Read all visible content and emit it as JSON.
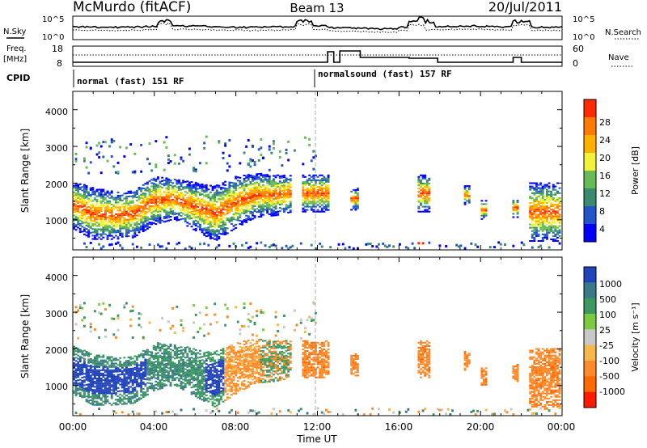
{
  "header": {
    "station": "McMurdo (fitACF)",
    "beam": "Beam 13",
    "date": "20/Jul/2011"
  },
  "noise_panel": {
    "left_label": "N.Sky",
    "right_label": "N.Search",
    "left_ticks": [
      "10^5",
      "10^0"
    ],
    "right_ticks": [
      "10^5",
      "10^0"
    ]
  },
  "freq_panel": {
    "left_label_1": "Freq.",
    "left_label_2": "[MHz]",
    "right_label": "Nave",
    "left_ticks": [
      "18",
      "8"
    ],
    "right_ticks": [
      "60",
      "0"
    ]
  },
  "cpid_panel": {
    "label": "CPID",
    "modes": [
      {
        "name": "normal (fast) 151 RF",
        "start_hour": 0,
        "end_hour": 12
      },
      {
        "name": "normalsound (fast) 157 RF",
        "start_hour": 12,
        "end_hour": 24
      }
    ]
  },
  "x_axis": {
    "label": "Time UT",
    "ticks": [
      "00:00",
      "04:00",
      "08:00",
      "12:00",
      "16:00",
      "20:00",
      "00:00"
    ],
    "range_hours": [
      0,
      24
    ]
  },
  "power_panel": {
    "ylabel": "Slant Range [km]",
    "yticks": [
      "4000",
      "3000",
      "2000",
      "1000"
    ],
    "colorbar_label": "Power [dB]",
    "colorbar_ticks": [
      "28",
      "24",
      "20",
      "16",
      "12",
      "8",
      "4"
    ],
    "colors": [
      "#0000ff",
      "#2255cc",
      "#3a8a70",
      "#66bb55",
      "#f2f23a",
      "#ffb000",
      "#ff7a00",
      "#ff2a00"
    ]
  },
  "velocity_panel": {
    "ylabel": "Slant Range [km]",
    "yticks": [
      "4000",
      "3000",
      "2000",
      "1000"
    ],
    "colorbar_label": "Velocity [m s⁻¹]",
    "colorbar_ticks": [
      "1000",
      "500",
      "100",
      "25",
      "-25",
      "-100",
      "-500",
      "-1000"
    ],
    "colors": [
      "#2244bb",
      "#3a7a88",
      "#3d9960",
      "#7acb40",
      "#c8c8c8",
      "#f7b74a",
      "#ff8a2a",
      "#ff6a00",
      "#ff1a00"
    ]
  },
  "chart_data": {
    "type": "heatmap",
    "x_label": "Time UT",
    "y_label": "Slant Range [km]",
    "x_range_hours": [
      0,
      24
    ],
    "y_range_km": [
      180,
      4500
    ],
    "panels": [
      "Power [dB]",
      "Velocity [m s⁻¹]"
    ],
    "main_echo_band": [
      {
        "hour": 0.0,
        "center_km": 1400,
        "width_km": 650
      },
      {
        "hour": 1.0,
        "center_km": 1150,
        "width_km": 700
      },
      {
        "hour": 2.0,
        "center_km": 1100,
        "width_km": 650
      },
      {
        "hour": 3.0,
        "center_km": 1150,
        "width_km": 650
      },
      {
        "hour": 4.0,
        "center_km": 1500,
        "width_km": 650
      },
      {
        "hour": 5.0,
        "center_km": 1550,
        "width_km": 550
      },
      {
        "hour": 6.0,
        "center_km": 1350,
        "width_km": 650
      },
      {
        "hour": 7.0,
        "center_km": 1150,
        "width_km": 750
      },
      {
        "hour": 8.0,
        "center_km": 1450,
        "width_km": 700
      },
      {
        "hour": 9.0,
        "center_km": 1650,
        "width_km": 600
      },
      {
        "hour": 10.0,
        "center_km": 1650,
        "width_km": 550
      },
      {
        "hour": 10.8,
        "center_km": 1700,
        "width_km": 500
      }
    ],
    "patches": [
      {
        "start_hour": 11.3,
        "end_hour": 12.6,
        "center_km": 1700,
        "width_km": 500
      },
      {
        "start_hour": 13.7,
        "end_hour": 14.1,
        "center_km": 1550,
        "width_km": 300
      },
      {
        "start_hour": 17.0,
        "end_hour": 17.6,
        "center_km": 1700,
        "width_km": 500
      },
      {
        "start_hour": 19.2,
        "end_hour": 19.5,
        "center_km": 1650,
        "width_km": 250
      },
      {
        "start_hour": 20.1,
        "end_hour": 20.4,
        "center_km": 1250,
        "width_km": 250
      },
      {
        "start_hour": 21.6,
        "end_hour": 21.9,
        "center_km": 1300,
        "width_km": 250
      },
      {
        "start_hour": 22.4,
        "end_hour": 24.0,
        "center_km": 1200,
        "width_km": 800
      }
    ]
  }
}
